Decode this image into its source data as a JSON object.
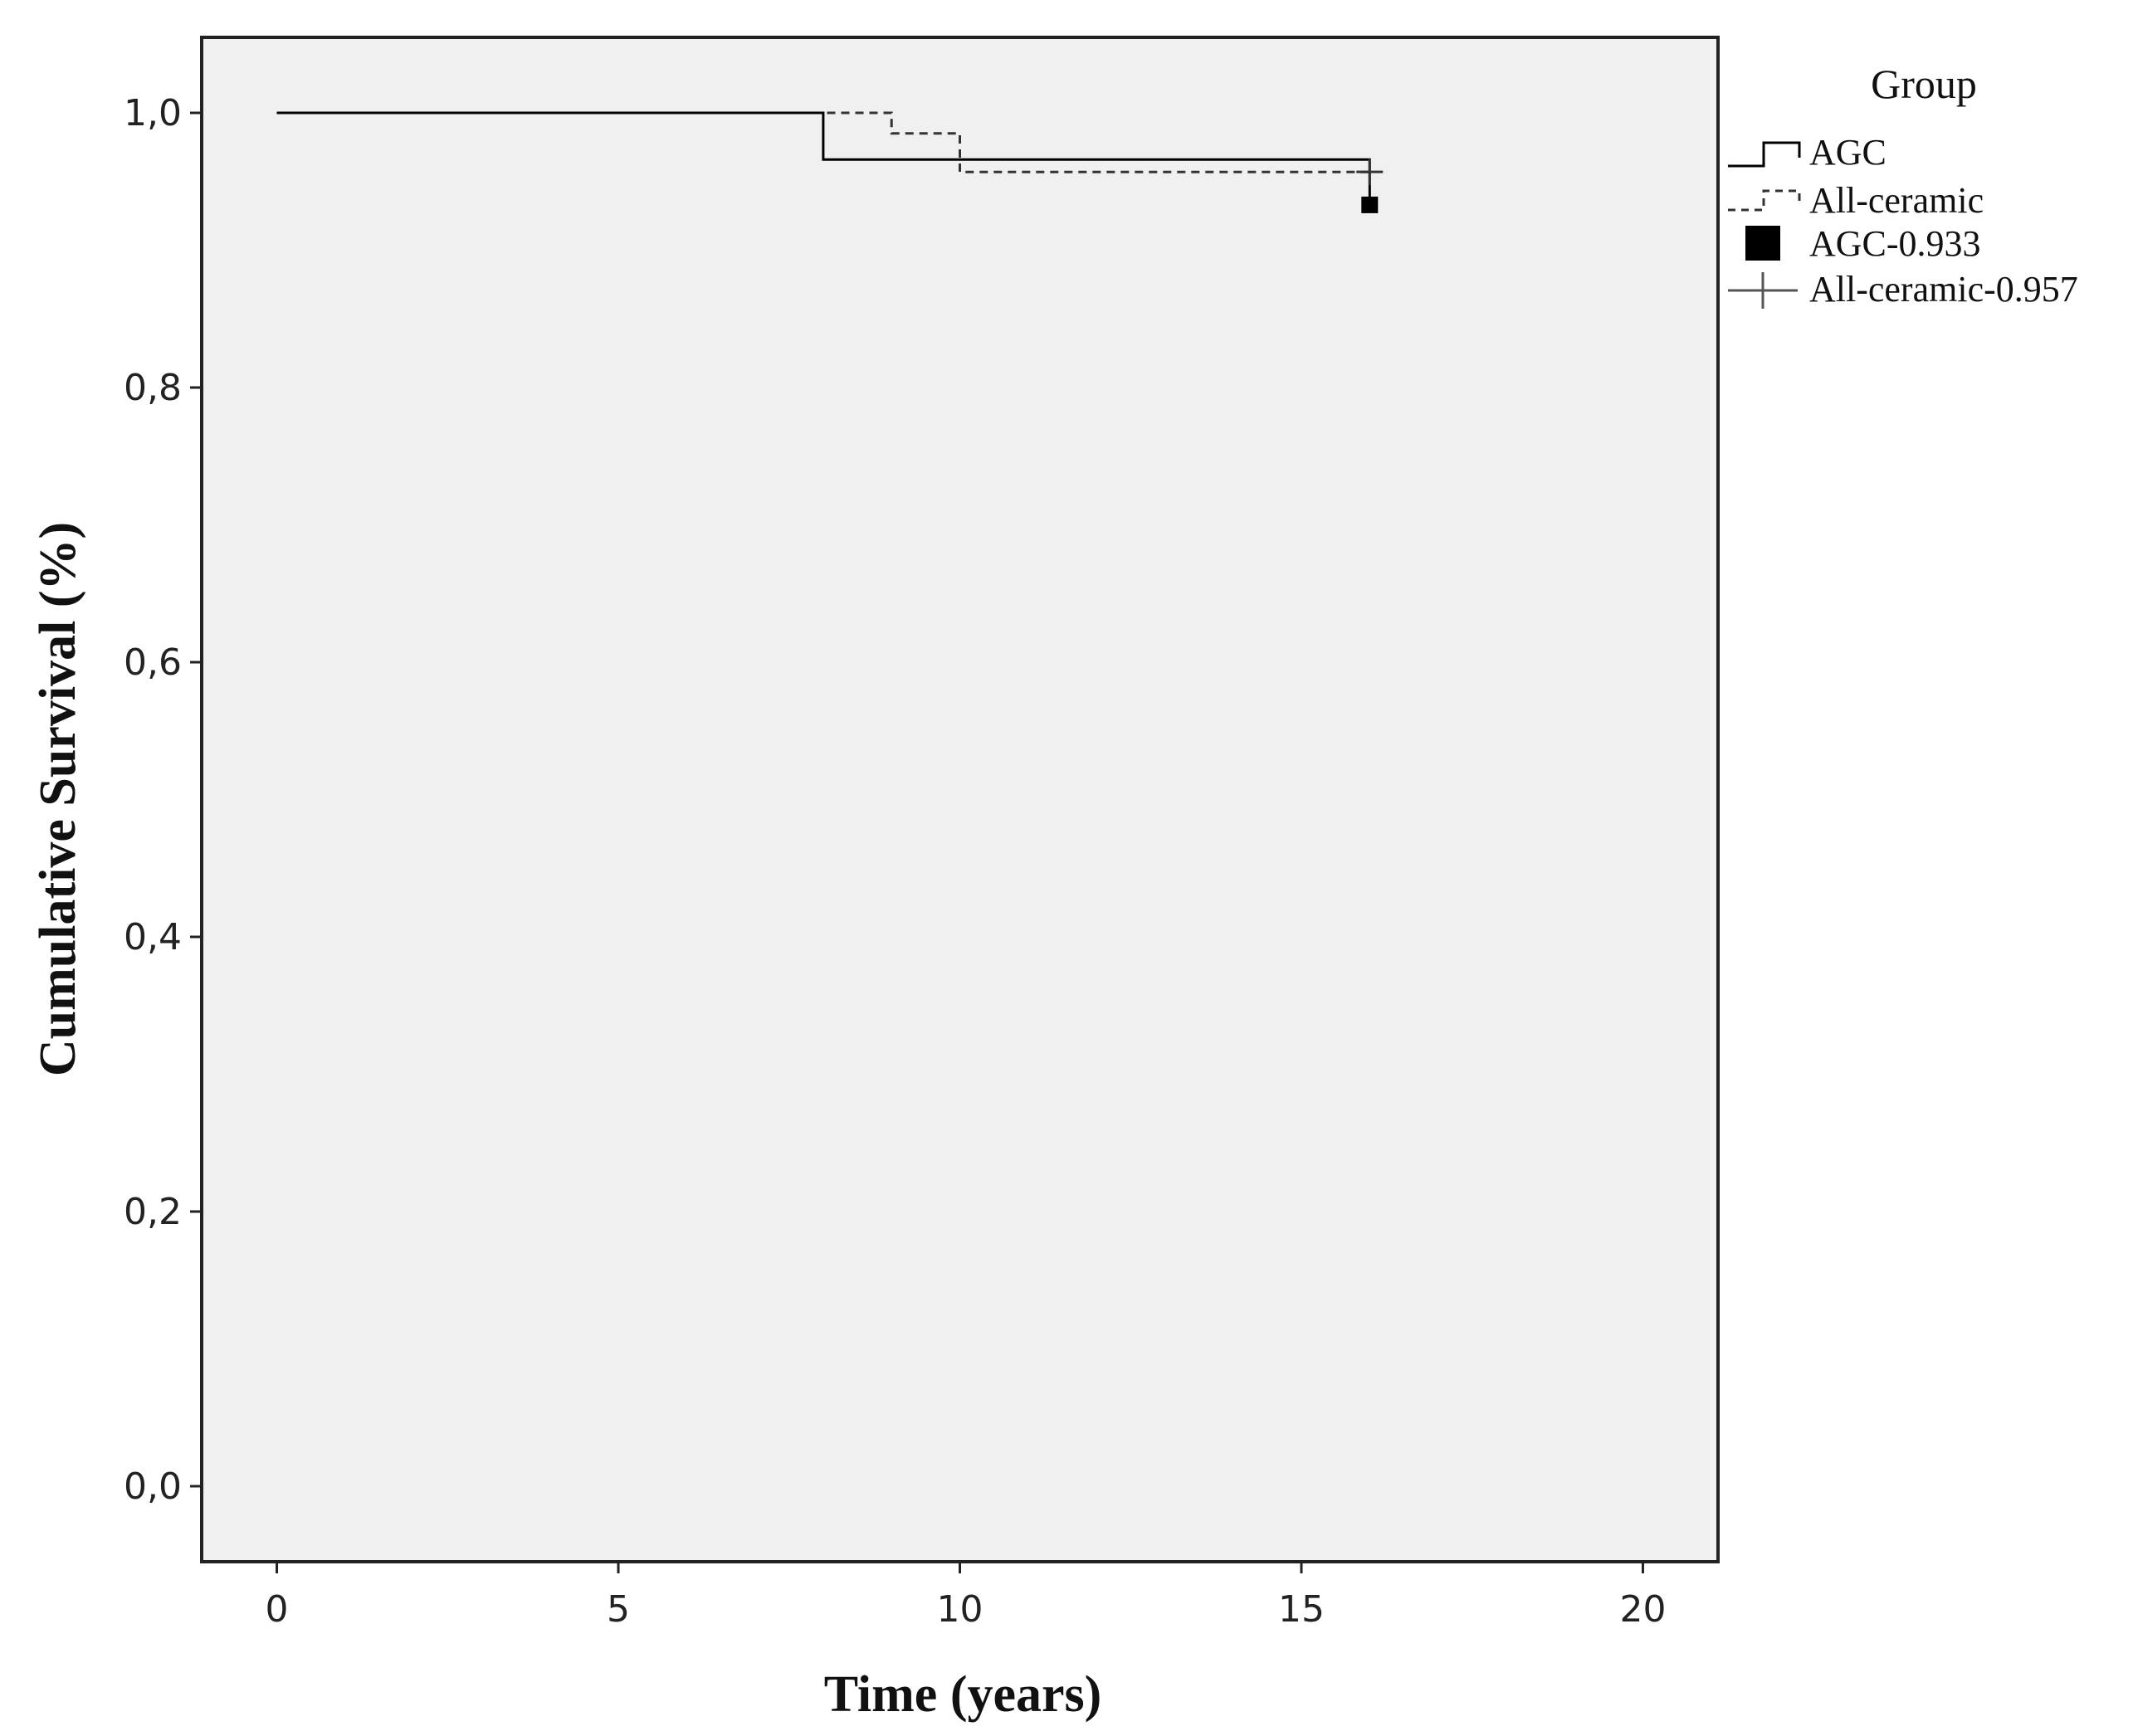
{
  "chart_data": {
    "type": "line",
    "subtype": "kaplan-meier step plot",
    "title": "",
    "xlabel": "Time (years)",
    "ylabel": "Cumulative Survival (%)",
    "xlim": [
      -1.1,
      21.1
    ],
    "ylim": [
      -0.055,
      1.055
    ],
    "x_ticks": [
      0,
      5,
      10,
      15,
      20
    ],
    "x_tick_labels": [
      "0",
      "5",
      "10",
      "15",
      "20"
    ],
    "y_ticks": [
      0.0,
      0.2,
      0.4,
      0.6,
      0.8,
      1.0
    ],
    "y_tick_labels": [
      "0,0",
      "0,2",
      "0,4",
      "0,6",
      "0,8",
      "1,0"
    ],
    "grid": false,
    "plot_background": "#f0f0f0",
    "legend": {
      "title": "Group",
      "placement": "right",
      "entries": [
        {
          "label": "AGC",
          "marker": "solid-line"
        },
        {
          "label": "All-ceramic",
          "marker": "dashed-line"
        },
        {
          "label": "AGC-0.933",
          "marker": "filled-square"
        },
        {
          "label": "All-ceramic-0.957",
          "marker": "plus"
        }
      ]
    },
    "series": [
      {
        "name": "AGC",
        "style": "solid",
        "color": "#000000",
        "steps": [
          [
            0,
            1.0
          ],
          [
            8,
            1.0
          ],
          [
            8,
            0.966
          ],
          [
            16,
            0.966
          ],
          [
            16,
            0.933
          ]
        ],
        "censor_marker": {
          "x": 16,
          "y": 0.933,
          "shape": "filled-square"
        }
      },
      {
        "name": "All-ceramic",
        "style": "dashed",
        "color": "#333333",
        "steps": [
          [
            0,
            1.0
          ],
          [
            9,
            1.0
          ],
          [
            9,
            0.985
          ],
          [
            10,
            0.985
          ],
          [
            10,
            0.957
          ],
          [
            16,
            0.957
          ]
        ],
        "censor_marker": {
          "x": 16,
          "y": 0.957,
          "shape": "plus"
        }
      }
    ]
  }
}
